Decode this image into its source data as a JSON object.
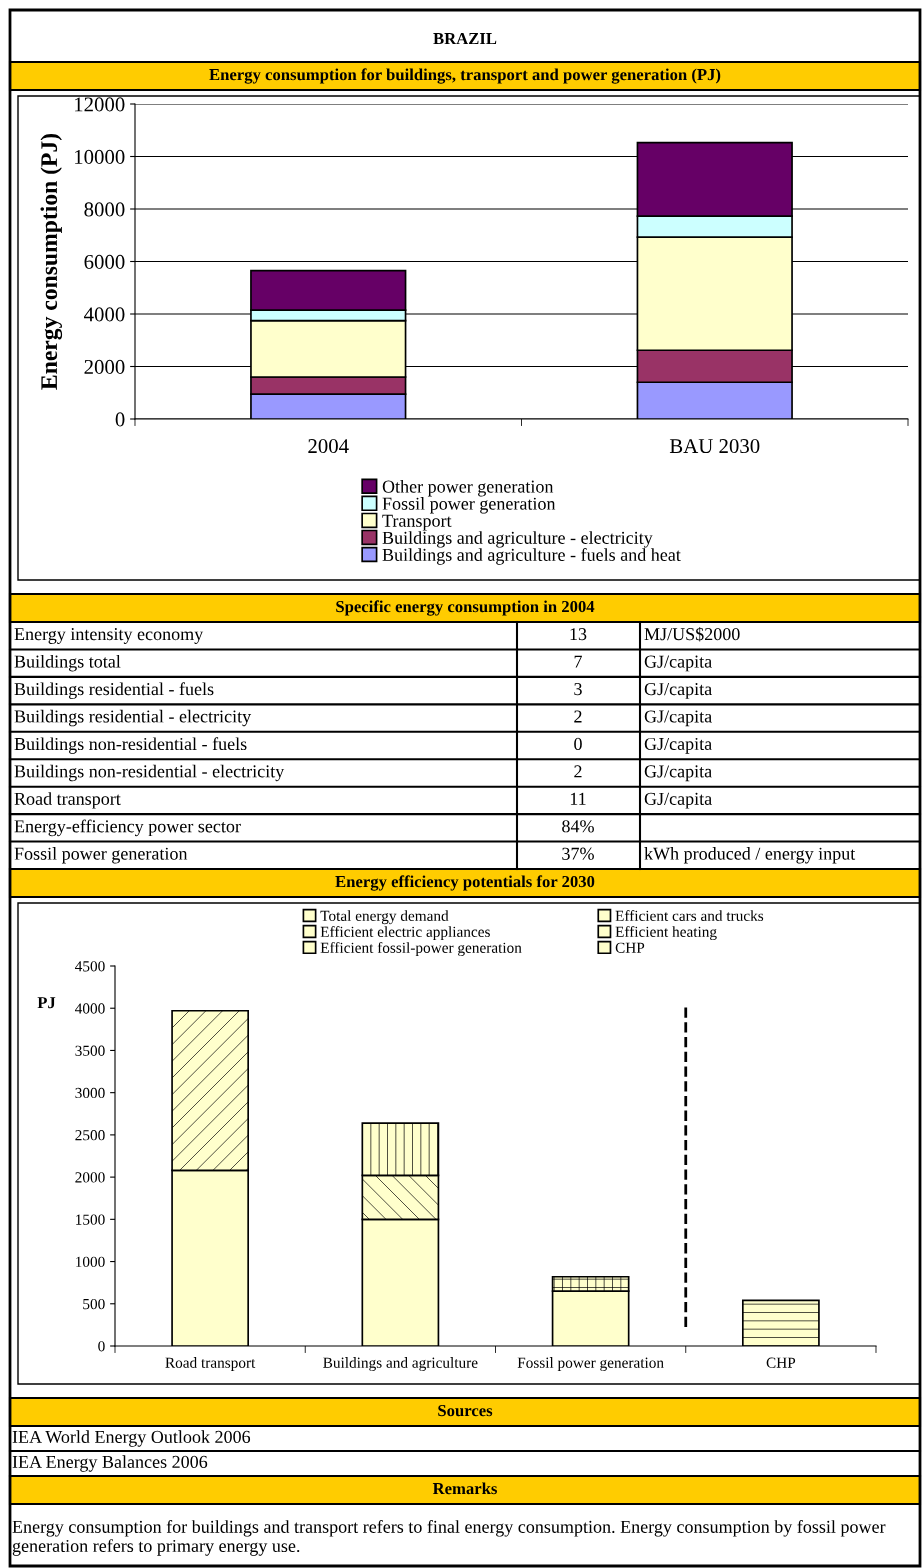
{
  "chart_data": [
    {
      "type": "other",
      "title": "BRAZIL"
    },
    {
      "type": "bar",
      "title": "Energy consumption for buildings, transport and power generation (PJ)",
      "ylabel": "Energy consumption (PJ)",
      "categories": [
        "2004",
        "BAU 2030"
      ],
      "stacked": true,
      "ylim": [
        0,
        12000
      ],
      "yticks": [
        0,
        2000,
        4000,
        6000,
        8000,
        10000,
        12000
      ],
      "grid": "y",
      "legend": "bottom",
      "series": [
        {
          "name": "Buildings and agriculture - fuels and heat",
          "color": "#9999ff",
          "values": [
            950,
            1400
          ]
        },
        {
          "name": "Buildings and agriculture - electricity",
          "color": "#993366",
          "values": [
            650,
            1220
          ]
        },
        {
          "name": "Transport",
          "color": "#ffffcc",
          "values": [
            2150,
            4310
          ]
        },
        {
          "name": "Fossil power generation",
          "color": "#ccffff",
          "values": [
            400,
            800
          ]
        },
        {
          "name": "Other power generation",
          "color": "#660066",
          "values": [
            1500,
            2800
          ]
        }
      ]
    },
    {
      "type": "other",
      "title": "Specific energy consumption in 2004",
      "categories": [
        "Energy intensity economy",
        "Buildings total",
        "Buildings residential - fuels",
        "Buildings residential - electricity",
        "Buildings non-residential - fuels",
        "Buildings non-residential - electricity",
        "Road transport",
        "Energy-efficiency power sector",
        "Fossil power generation"
      ],
      "value_labels": [
        "13",
        "7",
        "3",
        "2",
        "0",
        "2",
        "11",
        "84%",
        "37%"
      ],
      "y2_categories": [
        "MJ/US$2000",
        "GJ/capita",
        "GJ/capita",
        "GJ/capita",
        "GJ/capita",
        "GJ/capita",
        "GJ/capita",
        null,
        "kWh produced / energy input"
      ]
    },
    {
      "type": "bar",
      "title": "Energy efficiency potentials for 2030",
      "ylabel": "PJ",
      "categories": [
        "Road transport",
        "Buildings and agriculture",
        "Fossil power generation",
        "CHP"
      ],
      "stacked": true,
      "ylim": [
        0,
        4500
      ],
      "yticks": [
        0,
        500,
        1000,
        1500,
        2000,
        2500,
        3000,
        3500,
        4000,
        4500
      ],
      "grid": false,
      "legend": "top",
      "series": [
        {
          "name": "Total energy demand",
          "color": "#ffffcc",
          "values": [
            2080,
            1500,
            650,
            null
          ]
        },
        {
          "name": "Efficient cars and trucks",
          "color": "#ffffcc",
          "values": [
            1890,
            null,
            null,
            null
          ]
        },
        {
          "name": "Efficient electric appliances",
          "color": "#ffffcc",
          "values": [
            null,
            520,
            null,
            null
          ]
        },
        {
          "name": "Efficient heating",
          "color": "#ffffcc",
          "values": [
            null,
            620,
            null,
            null
          ]
        },
        {
          "name": "Efficient fossil-power generation",
          "color": "#ffffcc",
          "values": [
            null,
            null,
            170,
            null
          ]
        },
        {
          "name": "CHP",
          "color": "#ffffcc",
          "values": [
            null,
            null,
            null,
            540
          ]
        }
      ]
    },
    {
      "type": "other",
      "title": "Sources",
      "annotations": [
        "IEA World Energy Outlook 2006",
        "IEA Energy Balances 2006"
      ]
    },
    {
      "type": "other",
      "title": "Remarks",
      "annotations": [
        "Energy consumption for buildings and transport refers to final energy consumption. Energy consumption by fossil power generation refers to primary energy use."
      ]
    }
  ]
}
